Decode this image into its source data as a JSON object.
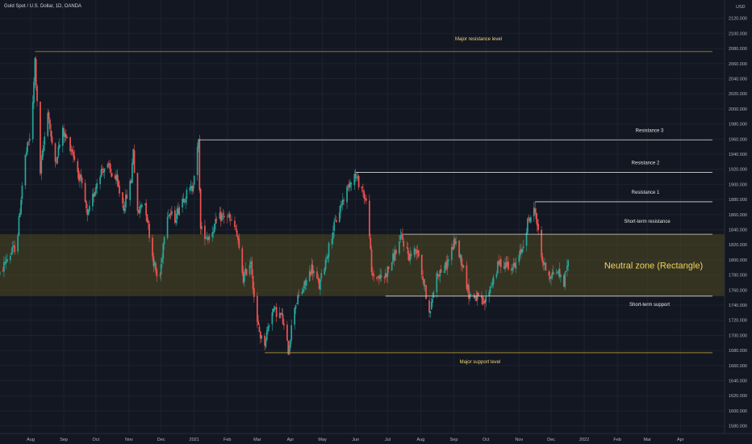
{
  "header": {
    "title": "Gold Spot / U.S. Dollar, 1D, OANDA",
    "currency": "USD"
  },
  "colors": {
    "background": "#131722",
    "grid": "#1e2230",
    "up": "#26a69a",
    "down": "#ef5350",
    "level_line": "#d8d8d8",
    "gold_line": "#b59a3a",
    "zone_fill": "#514b22"
  },
  "chart_data": {
    "type": "candlestick",
    "title": "Gold Spot / U.S. Dollar, 1D, OANDA",
    "y_unit": "USD",
    "ylim": [
      1570,
      2140
    ],
    "y_ticks": [
      1580,
      1600,
      1620,
      1640,
      1660,
      1680,
      1700,
      1720,
      1740,
      1760,
      1780,
      1800,
      1820,
      1840,
      1860,
      1880,
      1900,
      1920,
      1940,
      1960,
      1980,
      2000,
      2020,
      2040,
      2060,
      2080,
      2100,
      2120
    ],
    "y_tick_labels": [
      "1580.000",
      "1600.000",
      "1620.000",
      "1640.000",
      "1660.000",
      "1680.000",
      "1700.000",
      "1720.000",
      "1740.000",
      "1760.000",
      "1780.000",
      "1800.000",
      "1820.000",
      "1840.000",
      "1860.000",
      "1880.000",
      "1900.000",
      "1920.000",
      "1940.000",
      "1960.000",
      "1980.000",
      "2000.000",
      "2020.000",
      "2040.000",
      "2060.000",
      "2080.000",
      "2100.000",
      "2120.000"
    ],
    "x_start": "2020-07-01",
    "x_end": "2022-05-01",
    "x_ticks": [
      {
        "date": "2020-08-01",
        "label": "Aug"
      },
      {
        "date": "2020-09-01",
        "label": "Sep"
      },
      {
        "date": "2020-10-01",
        "label": "Oct"
      },
      {
        "date": "2020-11-01",
        "label": "Nov"
      },
      {
        "date": "2020-12-01",
        "label": "Dec"
      },
      {
        "date": "2021-01-01",
        "label": "2021"
      },
      {
        "date": "2021-02-01",
        "label": "Feb"
      },
      {
        "date": "2021-03-01",
        "label": "Mar"
      },
      {
        "date": "2021-04-01",
        "label": "Apr"
      },
      {
        "date": "2021-05-01",
        "label": "May"
      },
      {
        "date": "2021-06-01",
        "label": "Jun"
      },
      {
        "date": "2021-07-01",
        "label": "Jul"
      },
      {
        "date": "2021-08-01",
        "label": "Aug"
      },
      {
        "date": "2021-09-01",
        "label": "Sep"
      },
      {
        "date": "2021-10-01",
        "label": "Oct"
      },
      {
        "date": "2021-11-01",
        "label": "Nov"
      },
      {
        "date": "2021-12-01",
        "label": "Dec"
      },
      {
        "date": "2022-01-01",
        "label": "2022"
      },
      {
        "date": "2022-02-01",
        "label": "Feb"
      },
      {
        "date": "2022-03-01",
        "label": "Mar"
      },
      {
        "date": "2022-04-01",
        "label": "Apr"
      }
    ],
    "price_path": [
      [
        "2020-07-01",
        1770
      ],
      [
        "2020-07-10",
        1800
      ],
      [
        "2020-07-20",
        1820
      ],
      [
        "2020-07-27",
        1930
      ],
      [
        "2020-08-03",
        1975
      ],
      [
        "2020-08-06",
        2065
      ],
      [
        "2020-08-11",
        1915
      ],
      [
        "2020-08-18",
        2000
      ],
      [
        "2020-08-24",
        1925
      ],
      [
        "2020-09-01",
        1970
      ],
      [
        "2020-09-10",
        1945
      ],
      [
        "2020-09-21",
        1885
      ],
      [
        "2020-09-24",
        1855
      ],
      [
        "2020-10-05",
        1915
      ],
      [
        "2020-10-12",
        1925
      ],
      [
        "2020-10-21",
        1905
      ],
      [
        "2020-10-28",
        1870
      ],
      [
        "2020-11-04",
        1905
      ],
      [
        "2020-11-06",
        1950
      ],
      [
        "2020-11-09",
        1855
      ],
      [
        "2020-11-16",
        1885
      ],
      [
        "2020-11-24",
        1805
      ],
      [
        "2020-11-30",
        1765
      ],
      [
        "2020-12-07",
        1865
      ],
      [
        "2020-12-15",
        1855
      ],
      [
        "2020-12-21",
        1880
      ],
      [
        "2020-12-31",
        1895
      ],
      [
        "2021-01-06",
        1955
      ],
      [
        "2021-01-08",
        1840
      ],
      [
        "2021-01-15",
        1830
      ],
      [
        "2021-01-25",
        1855
      ],
      [
        "2021-02-01",
        1860
      ],
      [
        "2021-02-10",
        1840
      ],
      [
        "2021-02-17",
        1775
      ],
      [
        "2021-02-24",
        1800
      ],
      [
        "2021-03-01",
        1720
      ],
      [
        "2021-03-08",
        1685
      ],
      [
        "2021-03-16",
        1735
      ],
      [
        "2021-03-25",
        1725
      ],
      [
        "2021-03-31",
        1680
      ],
      [
        "2021-04-06",
        1740
      ],
      [
        "2021-04-15",
        1765
      ],
      [
        "2021-04-22",
        1790
      ],
      [
        "2021-04-29",
        1765
      ],
      [
        "2021-05-05",
        1800
      ],
      [
        "2021-05-12",
        1840
      ],
      [
        "2021-05-20",
        1875
      ],
      [
        "2021-05-28",
        1905
      ],
      [
        "2021-06-01",
        1912
      ],
      [
        "2021-06-08",
        1895
      ],
      [
        "2021-06-14",
        1865
      ],
      [
        "2021-06-17",
        1780
      ],
      [
        "2021-06-28",
        1775
      ],
      [
        "2021-07-05",
        1795
      ],
      [
        "2021-07-15",
        1830
      ],
      [
        "2021-07-22",
        1805
      ],
      [
        "2021-07-30",
        1815
      ],
      [
        "2021-08-06",
        1760
      ],
      [
        "2021-08-11",
        1730
      ],
      [
        "2021-08-16",
        1780
      ],
      [
        "2021-08-25",
        1790
      ],
      [
        "2021-09-03",
        1825
      ],
      [
        "2021-09-10",
        1795
      ],
      [
        "2021-09-16",
        1755
      ],
      [
        "2021-09-24",
        1750
      ],
      [
        "2021-09-30",
        1740
      ],
      [
        "2021-10-05",
        1760
      ],
      [
        "2021-10-14",
        1795
      ],
      [
        "2021-10-22",
        1795
      ],
      [
        "2021-10-29",
        1790
      ],
      [
        "2021-11-05",
        1815
      ],
      [
        "2021-11-10",
        1850
      ],
      [
        "2021-11-16",
        1865
      ],
      [
        "2021-11-18",
        1860
      ],
      [
        "2021-11-22",
        1810
      ],
      [
        "2021-11-26",
        1790
      ],
      [
        "2021-12-01",
        1780
      ],
      [
        "2021-12-08",
        1785
      ],
      [
        "2021-12-14",
        1770
      ],
      [
        "2021-12-17",
        1795
      ]
    ],
    "levels": [
      {
        "label": "Major resistance level",
        "value": 2076,
        "from": "2020-08-05",
        "to": "2022-05-01",
        "style": "gold"
      },
      {
        "label": "Resistance 3",
        "value": 1959,
        "from": "2021-01-06",
        "to": "2022-05-01",
        "style": "white"
      },
      {
        "label": "Resistance 2",
        "value": 1916,
        "from": "2021-06-01",
        "to": "2022-05-01",
        "style": "white"
      },
      {
        "label": "Resistance 1",
        "value": 1877,
        "from": "2021-11-16",
        "to": "2022-05-01",
        "style": "white"
      },
      {
        "label": "Short-term resistance",
        "value": 1834,
        "from": "2021-07-16",
        "to": "2022-05-01",
        "style": "white"
      },
      {
        "label": "Short-term support",
        "value": 1752,
        "from": "2021-06-29",
        "to": "2022-05-01",
        "style": "white"
      },
      {
        "label": "Major support level",
        "value": 1677,
        "from": "2021-03-08",
        "to": "2022-05-01",
        "style": "gold"
      }
    ],
    "zone": {
      "label": "Neutral zone (Rectangle)",
      "y_low": 1752,
      "y_high": 1834
    }
  }
}
